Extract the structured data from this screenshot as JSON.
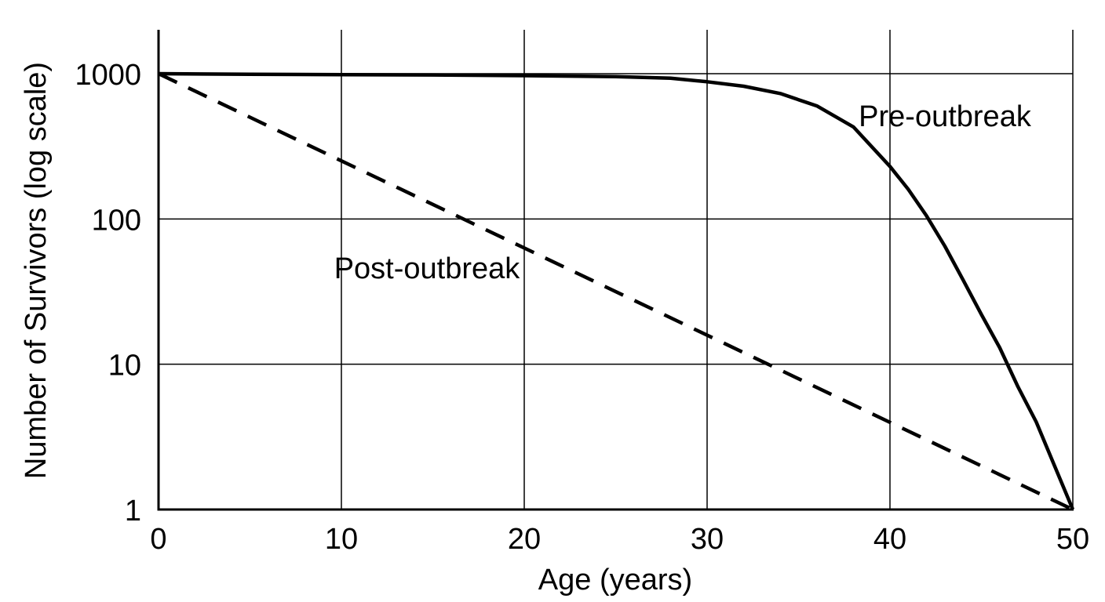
{
  "chart_data": {
    "type": "line",
    "title": "",
    "xlabel": "Age (years)",
    "ylabel": "Number of Survivors (log scale)",
    "xlim": [
      0,
      50
    ],
    "ylim": [
      1,
      1000
    ],
    "yscale": "log",
    "grid": true,
    "x_ticks": [
      0,
      10,
      20,
      30,
      40,
      50
    ],
    "x_tick_labels": [
      "0",
      "10",
      "20",
      "30",
      "40",
      "50"
    ],
    "y_ticks": [
      1,
      10,
      100,
      1000
    ],
    "y_tick_labels": [
      "1",
      "10",
      "100",
      "1000"
    ],
    "series": [
      {
        "name": "Pre-outbreak",
        "style": "solid",
        "color": "#000000",
        "x": [
          0,
          5,
          10,
          15,
          20,
          25,
          28,
          30,
          32,
          34,
          36,
          38,
          40,
          41,
          42,
          43,
          44,
          45,
          46,
          47,
          48,
          49,
          50
        ],
        "y": [
          1000,
          990,
          985,
          980,
          970,
          955,
          930,
          880,
          820,
          730,
          600,
          430,
          230,
          160,
          105,
          65,
          38,
          22,
          13,
          7,
          4,
          2,
          1
        ]
      },
      {
        "name": "Post-outbreak",
        "style": "dashed",
        "color": "#000000",
        "x": [
          0,
          50
        ],
        "y": [
          1000,
          1
        ]
      }
    ],
    "annotations": [
      {
        "text": "Pre-outbreak",
        "series": "Pre-outbreak"
      },
      {
        "text": "Post-outbreak",
        "series": "Post-outbreak"
      }
    ]
  }
}
